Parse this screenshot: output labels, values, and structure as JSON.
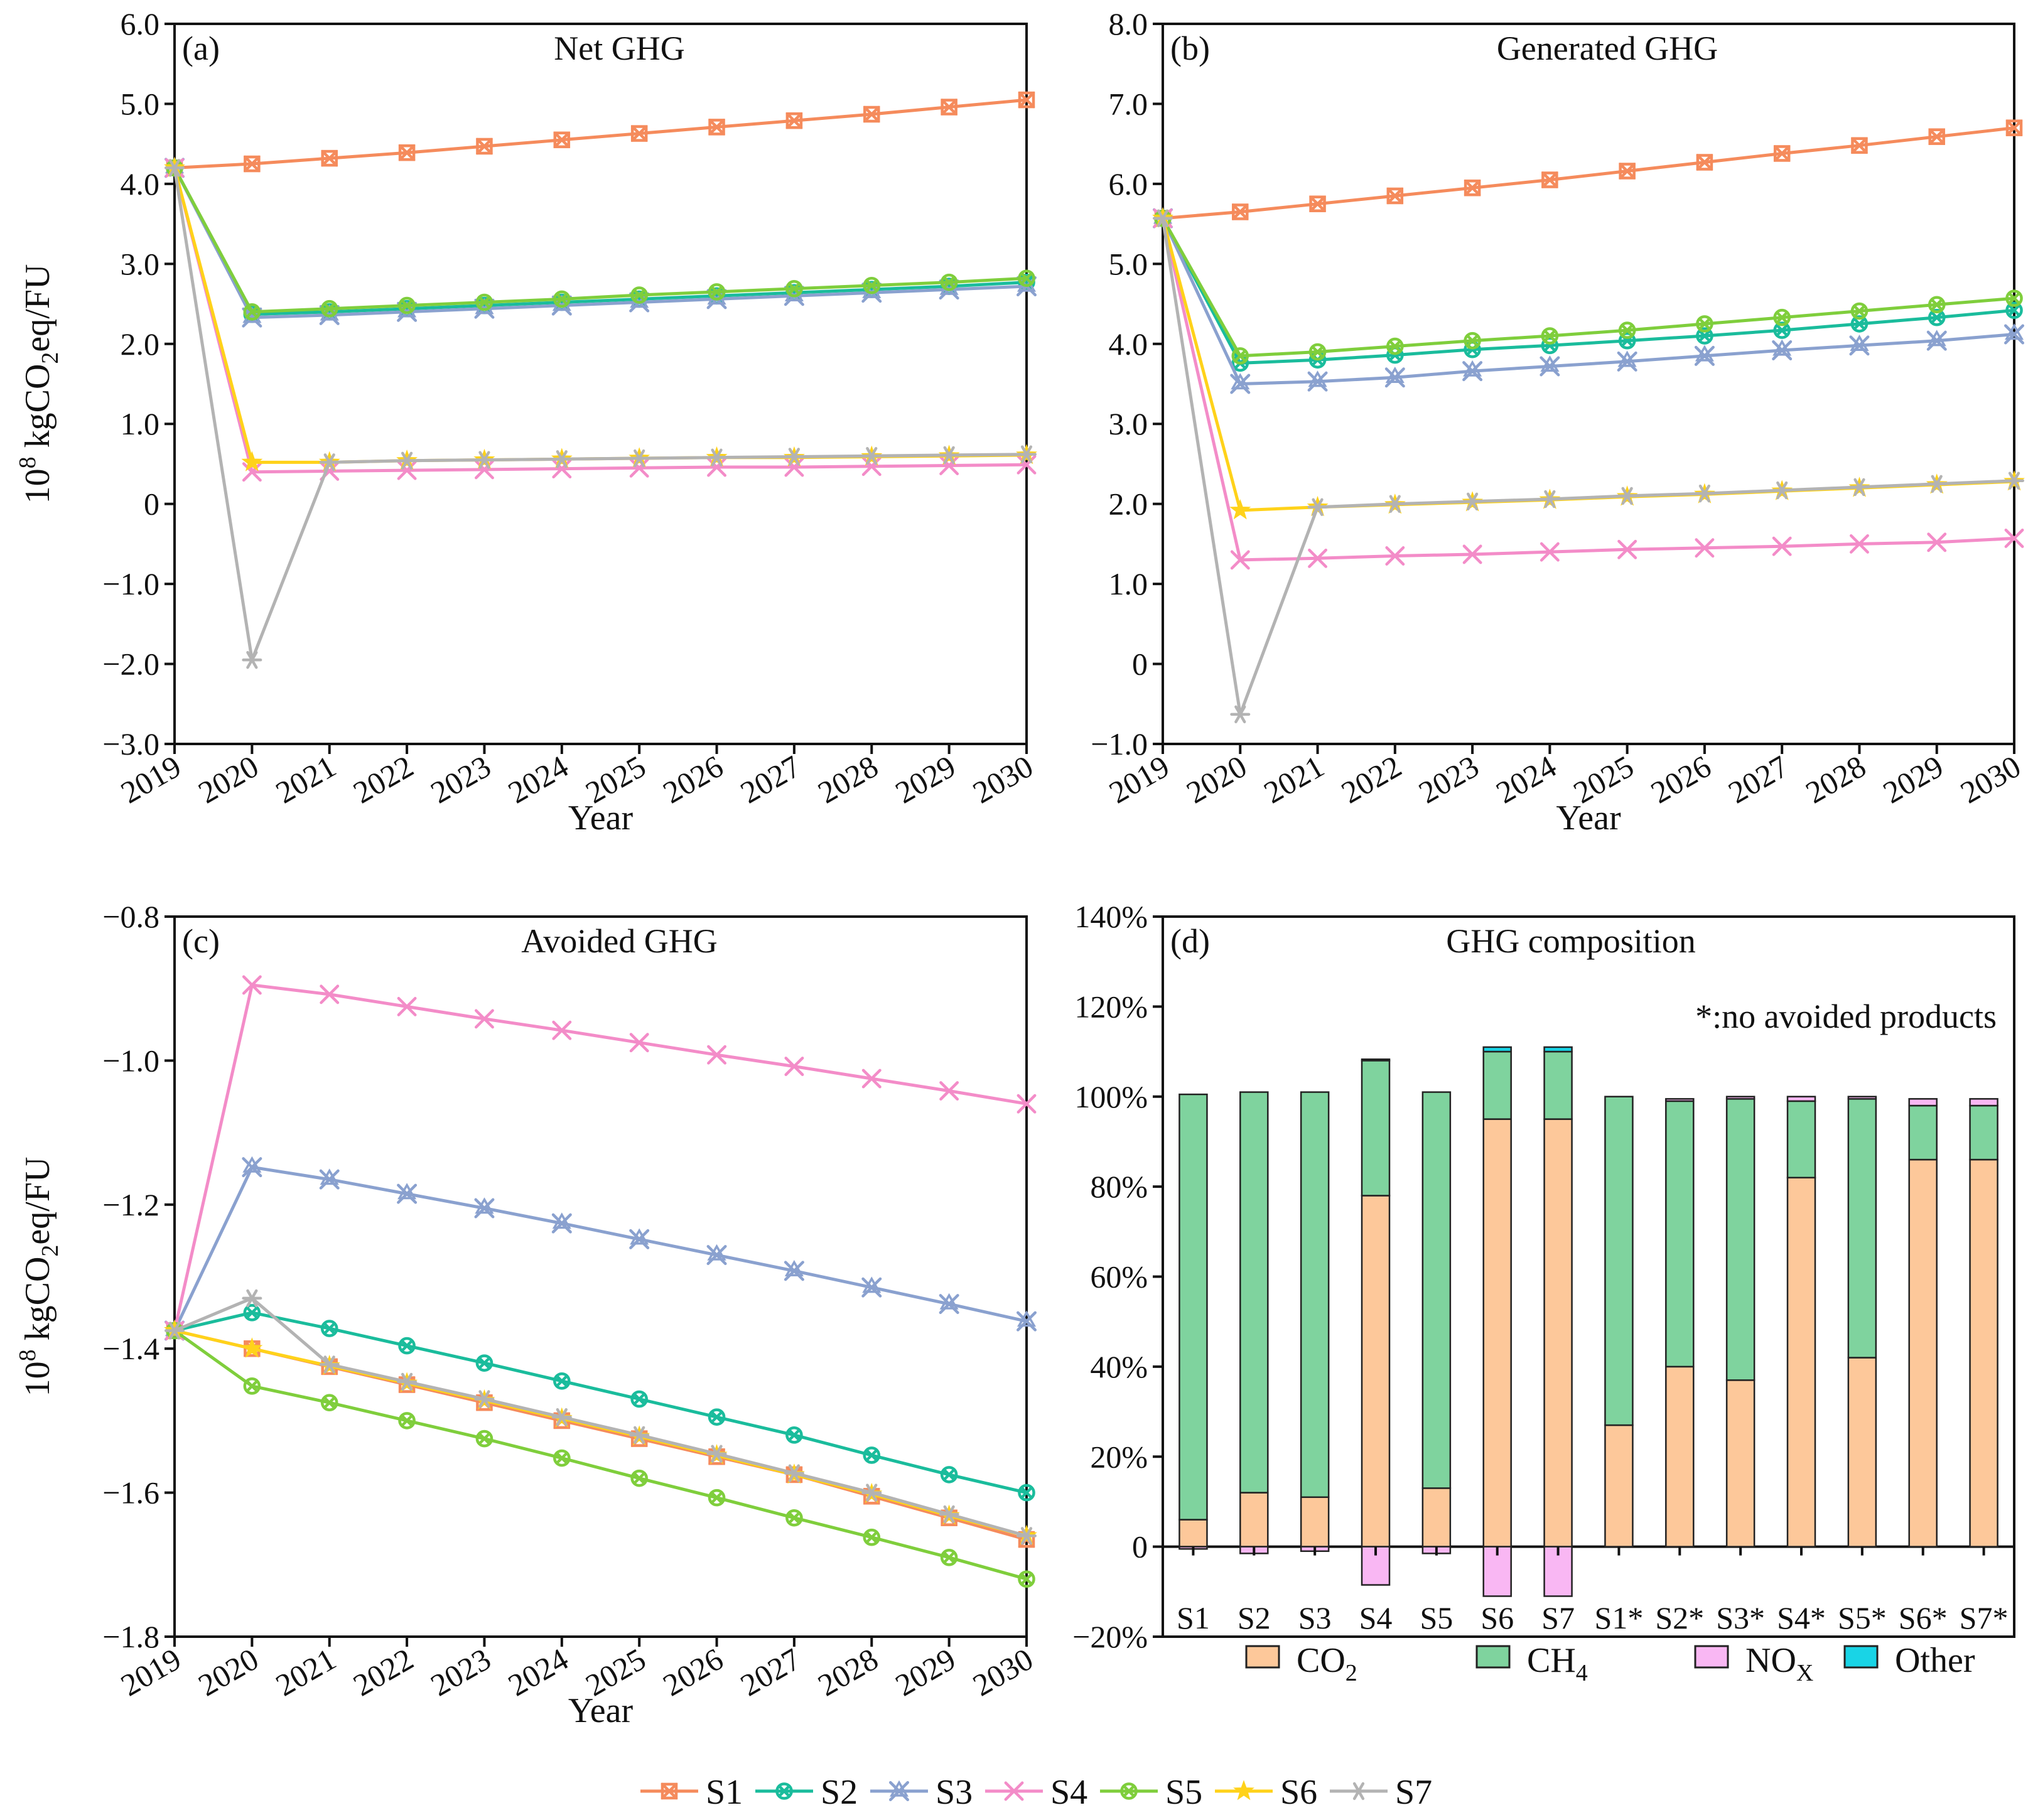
{
  "colors": {
    "S1": "#f58b5c",
    "S2": "#1abc9c",
    "S3": "#8aa1cf",
    "S4": "#f38cc8",
    "S5": "#7fce3c",
    "S6": "#ffd21a",
    "S7": "#b3b3b3",
    "CO2": "#fdc89a",
    "CH4": "#7fd39e",
    "NOX": "#f9b7f3",
    "Other": "#19d4e6"
  },
  "legend": {
    "series": [
      {
        "key": "S1",
        "label": "S1",
        "marker": "square-cross"
      },
      {
        "key": "S2",
        "label": "S2",
        "marker": "circle-cross"
      },
      {
        "key": "S3",
        "label": "S3",
        "marker": "star-x"
      },
      {
        "key": "S4",
        "label": "S4",
        "marker": "x"
      },
      {
        "key": "S5",
        "label": "S5",
        "marker": "circle-cross"
      },
      {
        "key": "S6",
        "label": "S6",
        "marker": "star"
      },
      {
        "key": "S7",
        "label": "S7",
        "marker": "asterisk"
      }
    ],
    "composition": [
      {
        "key": "CO2",
        "label": "CO",
        "sub": "2"
      },
      {
        "key": "CH4",
        "label": "CH",
        "sub": "4"
      },
      {
        "key": "NOX",
        "label": "NO",
        "sub": "X"
      },
      {
        "key": "Other",
        "label": "Other",
        "sub": ""
      }
    ]
  },
  "chart_data": [
    {
      "id": "a",
      "type": "line",
      "panel_label": "(a)",
      "title": "Net GHG",
      "xlabel": "Year",
      "ylabel": "10",
      "ylabel_exp": "8",
      "ylabel_rest": " kgCO",
      "ylabel_sub": "2",
      "ylabel_tail": "eq/FU",
      "x": [
        2019,
        2020,
        2021,
        2022,
        2023,
        2024,
        2025,
        2026,
        2027,
        2028,
        2029,
        2030
      ],
      "ylim": [
        -3.0,
        6.0
      ],
      "yticks": [
        -3,
        -2,
        -1,
        0,
        1,
        2,
        3,
        4,
        5,
        6
      ],
      "ytick_labels": [
        "−3.0",
        "−2.0",
        "−1.0",
        "0",
        "1.0",
        "2.0",
        "3.0",
        "4.0",
        "5.0",
        "6.0"
      ],
      "series": [
        {
          "name": "S1",
          "values": [
            4.2,
            4.25,
            4.32,
            4.39,
            4.47,
            4.55,
            4.63,
            4.71,
            4.79,
            4.87,
            4.96,
            5.05
          ]
        },
        {
          "name": "S2",
          "values": [
            4.2,
            2.37,
            2.4,
            2.44,
            2.48,
            2.52,
            2.56,
            2.6,
            2.64,
            2.68,
            2.72,
            2.77
          ]
        },
        {
          "name": "S3",
          "values": [
            4.2,
            2.33,
            2.36,
            2.4,
            2.44,
            2.48,
            2.52,
            2.56,
            2.6,
            2.64,
            2.68,
            2.72
          ]
        },
        {
          "name": "S4",
          "values": [
            4.2,
            0.4,
            0.41,
            0.42,
            0.43,
            0.44,
            0.45,
            0.46,
            0.46,
            0.47,
            0.48,
            0.49
          ]
        },
        {
          "name": "S5",
          "values": [
            4.2,
            2.4,
            2.44,
            2.48,
            2.52,
            2.56,
            2.61,
            2.65,
            2.69,
            2.73,
            2.77,
            2.82
          ]
        },
        {
          "name": "S6",
          "values": [
            4.2,
            0.52,
            0.52,
            0.54,
            0.55,
            0.56,
            0.57,
            0.58,
            0.58,
            0.59,
            0.6,
            0.61
          ]
        },
        {
          "name": "S7",
          "values": [
            4.2,
            -1.95,
            0.52,
            0.54,
            0.55,
            0.56,
            0.57,
            0.58,
            0.59,
            0.6,
            0.61,
            0.62
          ]
        }
      ]
    },
    {
      "id": "b",
      "type": "line",
      "panel_label": "(b)",
      "title": "Generated GHG",
      "xlabel": "Year",
      "x": [
        2019,
        2020,
        2021,
        2022,
        2023,
        2024,
        2025,
        2026,
        2027,
        2028,
        2029,
        2030
      ],
      "ylim": [
        -1.0,
        8.0
      ],
      "yticks": [
        -1,
        0,
        1,
        2,
        3,
        4,
        5,
        6,
        7,
        8
      ],
      "ytick_labels": [
        "−1.0",
        "0",
        "1.0",
        "2.0",
        "3.0",
        "4.0",
        "5.0",
        "6.0",
        "7.0",
        "8.0"
      ],
      "series": [
        {
          "name": "S1",
          "values": [
            5.57,
            5.65,
            5.75,
            5.85,
            5.95,
            6.05,
            6.16,
            6.27,
            6.38,
            6.48,
            6.59,
            6.7
          ]
        },
        {
          "name": "S2",
          "values": [
            5.57,
            3.76,
            3.8,
            3.86,
            3.93,
            3.98,
            4.04,
            4.1,
            4.17,
            4.25,
            4.33,
            4.42
          ]
        },
        {
          "name": "S3",
          "values": [
            5.57,
            3.5,
            3.53,
            3.58,
            3.66,
            3.72,
            3.78,
            3.85,
            3.92,
            3.98,
            4.04,
            4.12
          ]
        },
        {
          "name": "S4",
          "values": [
            5.57,
            1.3,
            1.32,
            1.35,
            1.37,
            1.4,
            1.43,
            1.45,
            1.47,
            1.5,
            1.52,
            1.57
          ]
        },
        {
          "name": "S5",
          "values": [
            5.57,
            3.85,
            3.9,
            3.97,
            4.04,
            4.1,
            4.17,
            4.25,
            4.33,
            4.41,
            4.49,
            4.57
          ]
        },
        {
          "name": "S6",
          "values": [
            5.57,
            1.92,
            1.96,
            1.99,
            2.02,
            2.05,
            2.09,
            2.12,
            2.16,
            2.2,
            2.24,
            2.28
          ]
        },
        {
          "name": "S7",
          "values": [
            5.57,
            -0.63,
            1.96,
            2.0,
            2.03,
            2.06,
            2.1,
            2.13,
            2.17,
            2.21,
            2.25,
            2.29
          ]
        }
      ]
    },
    {
      "id": "c",
      "type": "line",
      "panel_label": "(c)",
      "title": "Avoided GHG",
      "xlabel": "Year",
      "ylabel": "10",
      "ylabel_exp": "8",
      "ylabel_rest": " kgCO",
      "ylabel_sub": "2",
      "ylabel_tail": "eq/FU",
      "x": [
        2019,
        2020,
        2021,
        2022,
        2023,
        2024,
        2025,
        2026,
        2027,
        2028,
        2029,
        2030
      ],
      "ylim": [
        -1.8,
        -0.8
      ],
      "yticks": [
        -1.8,
        -1.6,
        -1.4,
        -1.2,
        -1.0,
        -0.8
      ],
      "ytick_labels": [
        "−1.8",
        "−1.6",
        "−1.4",
        "−1.2",
        "−1.0",
        "−0.8"
      ],
      "series": [
        {
          "name": "S1",
          "values": [
            -1.375,
            -1.4,
            -1.425,
            -1.45,
            -1.475,
            -1.5,
            -1.525,
            -1.55,
            -1.575,
            -1.605,
            -1.635,
            -1.665
          ]
        },
        {
          "name": "S2",
          "values": [
            -1.375,
            -1.35,
            -1.372,
            -1.396,
            -1.42,
            -1.445,
            -1.47,
            -1.495,
            -1.52,
            -1.548,
            -1.575,
            -1.6
          ]
        },
        {
          "name": "S3",
          "values": [
            -1.375,
            -1.148,
            -1.165,
            -1.185,
            -1.205,
            -1.226,
            -1.248,
            -1.27,
            -1.292,
            -1.315,
            -1.338,
            -1.362
          ]
        },
        {
          "name": "S4",
          "values": [
            -1.375,
            -0.895,
            -0.908,
            -0.925,
            -0.942,
            -0.958,
            -0.975,
            -0.992,
            -1.008,
            -1.025,
            -1.042,
            -1.06
          ]
        },
        {
          "name": "S5",
          "values": [
            -1.375,
            -1.452,
            -1.475,
            -1.5,
            -1.525,
            -1.552,
            -1.58,
            -1.607,
            -1.635,
            -1.662,
            -1.69,
            -1.72
          ]
        },
        {
          "name": "S6",
          "values": [
            -1.375,
            -1.4,
            -1.424,
            -1.448,
            -1.472,
            -1.497,
            -1.522,
            -1.548,
            -1.575,
            -1.602,
            -1.632,
            -1.66
          ]
        },
        {
          "name": "S7",
          "values": [
            -1.375,
            -1.33,
            -1.422,
            -1.446,
            -1.47,
            -1.495,
            -1.52,
            -1.546,
            -1.573,
            -1.6,
            -1.63,
            -1.66
          ]
        }
      ]
    },
    {
      "id": "d",
      "type": "bar",
      "stacked": true,
      "panel_label": "(d)",
      "title": "GHG composition",
      "annotation": "*:no avoided products",
      "categories": [
        "S1",
        "S2",
        "S3",
        "S4",
        "S5",
        "S6",
        "S7",
        "S1*",
        "S2*",
        "S3*",
        "S4*",
        "S5*",
        "S6*",
        "S7*"
      ],
      "ylim": [
        -20,
        140
      ],
      "yticks": [
        -20,
        0,
        20,
        40,
        60,
        80,
        100,
        120,
        140
      ],
      "ytick_labels": [
        "−20%",
        "0",
        "20%",
        "40%",
        "60%",
        "80%",
        "100%",
        "120%",
        "140%"
      ],
      "series": [
        {
          "name": "CO2",
          "values": [
            6,
            12,
            11,
            78,
            13,
            95,
            95,
            27,
            40,
            37,
            82,
            42,
            86,
            86
          ]
        },
        {
          "name": "CH4",
          "values": [
            94.5,
            89,
            90,
            30,
            88,
            15,
            15,
            73,
            59,
            62.5,
            17,
            57.5,
            12,
            12
          ]
        },
        {
          "name": "NOX",
          "values": [
            -0.5,
            -1.5,
            -1,
            -8.5,
            -1.5,
            -11,
            -11,
            0,
            0.5,
            0.5,
            1,
            0.5,
            1.5,
            1.5
          ]
        },
        {
          "name": "Other",
          "values": [
            0,
            0,
            0,
            0.3,
            0,
            1,
            1,
            0,
            0,
            0,
            0,
            0,
            0,
            0
          ]
        }
      ]
    }
  ]
}
